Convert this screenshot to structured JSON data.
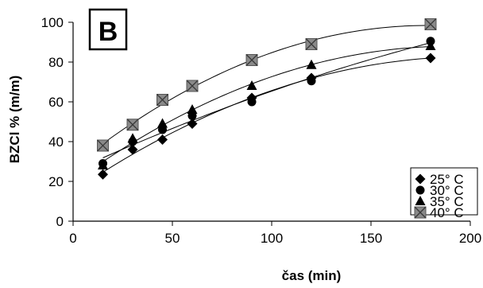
{
  "chart_data": {
    "type": "scatter",
    "panel_label": "B",
    "title": "",
    "xlabel": "čas (min)",
    "ylabel": "BZCl % (m/m)",
    "xlim": [
      0,
      200
    ],
    "ylim": [
      0,
      100
    ],
    "x_ticks": [
      0,
      50,
      100,
      150,
      200
    ],
    "y_ticks": [
      0,
      20,
      40,
      60,
      80,
      100
    ],
    "legend_position": "bottom-right",
    "grid": false,
    "trendlines": true,
    "x": [
      15,
      30,
      45,
      60,
      90,
      120,
      180
    ],
    "series": [
      {
        "name": "25° C",
        "marker": "diamond",
        "color": "#000000",
        "values": [
          23.5,
          36,
          41,
          49,
          62,
          72,
          82
        ]
      },
      {
        "name": "30° C",
        "marker": "circle",
        "color": "#000000",
        "values": [
          29,
          40,
          46,
          53,
          60,
          70.5,
          90.5
        ]
      },
      {
        "name": "35° C",
        "marker": "triangle",
        "color": "#000000",
        "values": [
          28,
          41.5,
          49,
          56,
          68,
          78.5,
          88
        ]
      },
      {
        "name": "40° C",
        "marker": "square-x",
        "color": "#8a8a8a",
        "values": [
          38,
          48.5,
          61,
          68,
          81,
          89,
          99
        ]
      }
    ]
  }
}
